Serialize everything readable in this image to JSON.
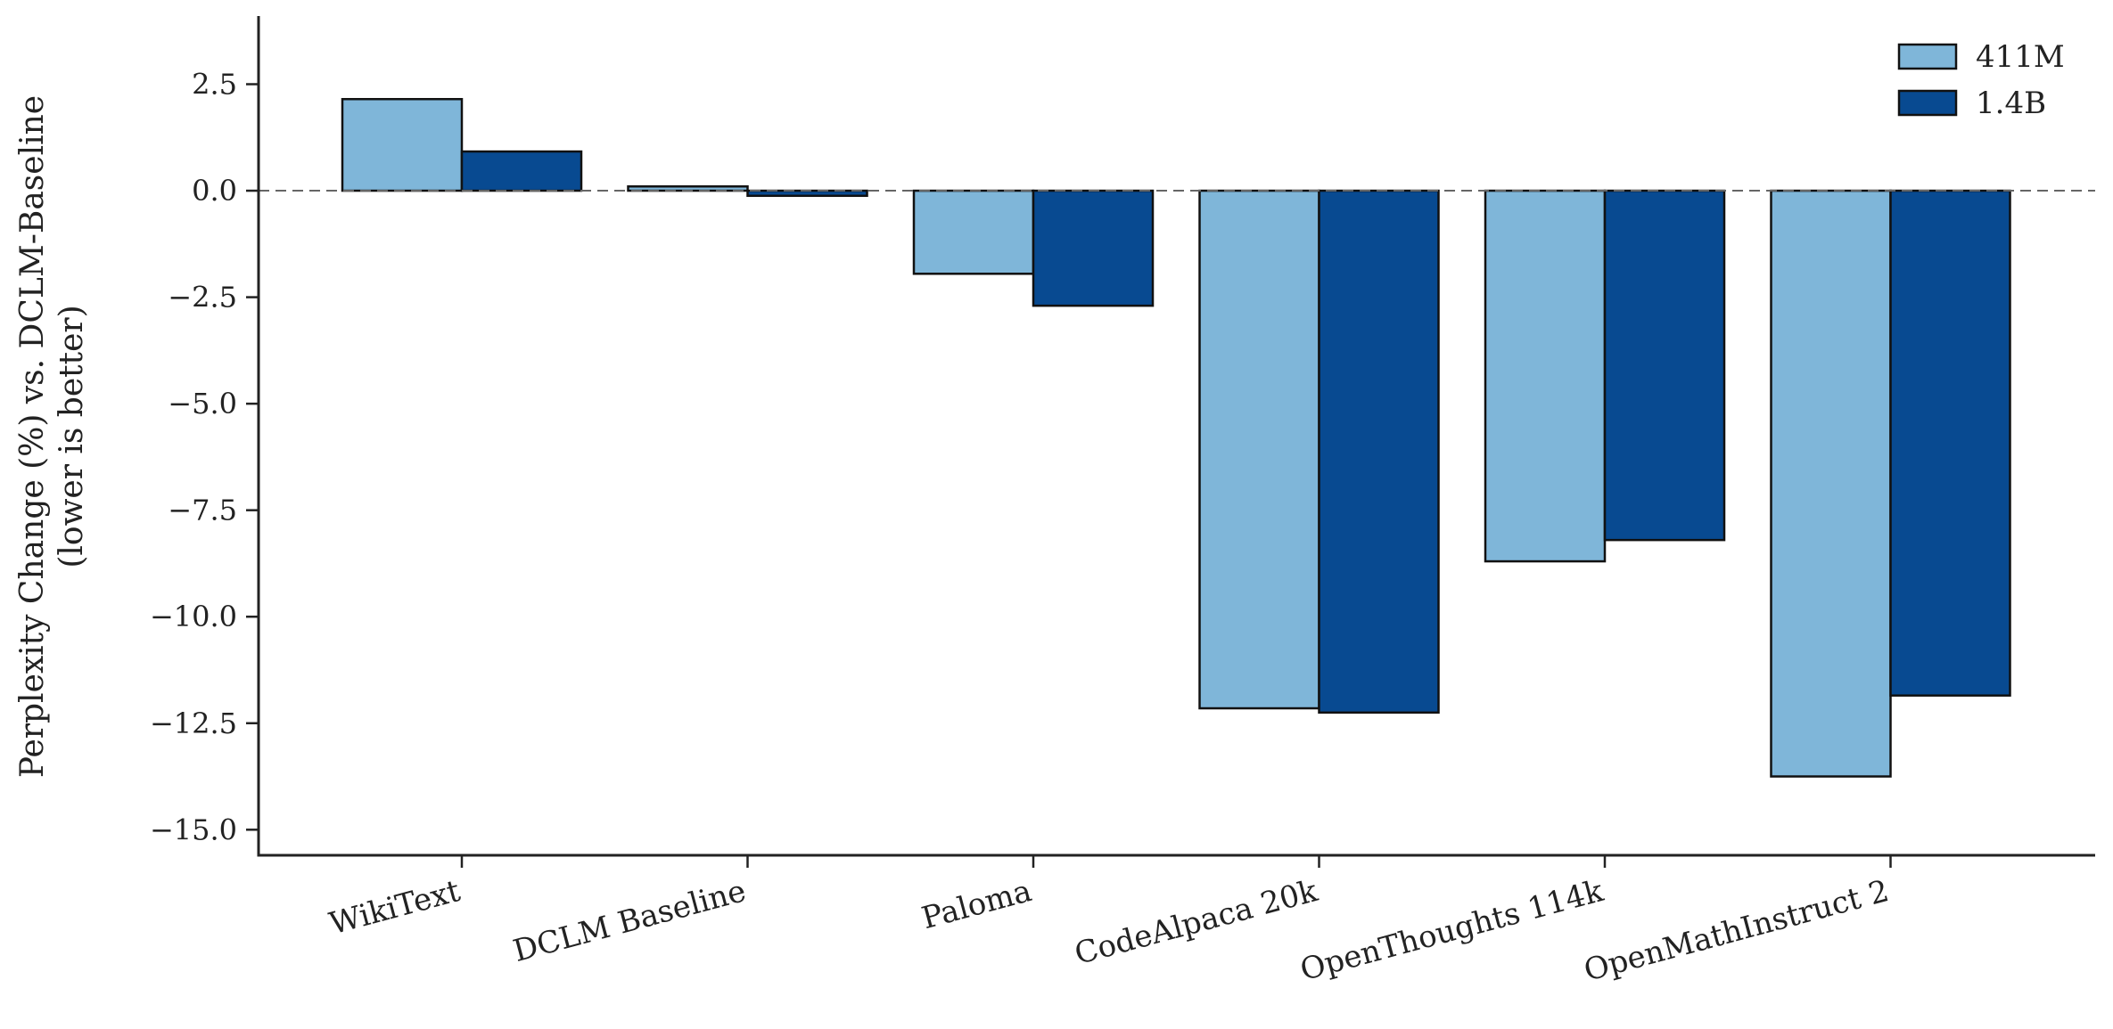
{
  "chart_data": {
    "type": "bar",
    "categories": [
      "WikiText",
      "DCLM Baseline",
      "Paloma",
      "CodeAlpaca 20k",
      "OpenThoughts 114k",
      "OpenMathInstruct 2"
    ],
    "series": [
      {
        "name": "411M",
        "color": "#7FB6D9",
        "values": [
          2.15,
          0.1,
          -1.95,
          -12.15,
          -8.7,
          -13.75
        ]
      },
      {
        "name": "1.4B",
        "color": "#084A91",
        "values": [
          0.92,
          -0.12,
          -2.7,
          -12.25,
          -8.2,
          -11.85
        ]
      }
    ],
    "xlabel": "",
    "ylabel_line1": "Perplexity Change (%) vs. DCLM-Baseline",
    "ylabel_line2": "(lower is better)",
    "ylim": [
      -15.6,
      4.1
    ],
    "yticks": [
      2.5,
      0.0,
      -2.5,
      -5.0,
      -7.5,
      -10.0,
      -12.5,
      -15.0
    ],
    "ytick_labels": [
      "2.5",
      "0.0",
      "−2.5",
      "−5.0",
      "−7.5",
      "−10.0",
      "−12.5",
      "−15.0"
    ],
    "reference_line": 0,
    "grid": false,
    "legend_position": "top-right"
  }
}
